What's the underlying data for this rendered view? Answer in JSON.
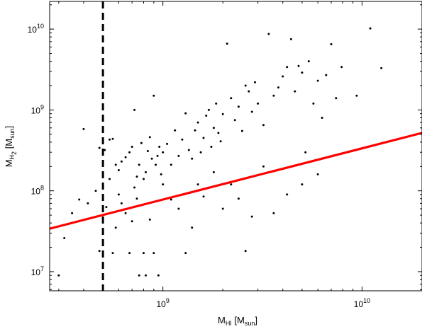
{
  "chart_data": {
    "type": "scatter",
    "xscale": "log",
    "yscale": "log",
    "xlim": [
      270000000,
      20000000000
    ],
    "ylim": [
      5800000,
      22000000000
    ],
    "grid": false,
    "xlabel": {
      "main": "M",
      "sub": "HI",
      "unit_open": " [M",
      "unit_sub": "sun",
      "unit_close": "]"
    },
    "ylabel": {
      "main": "M",
      "sub": "H",
      "subsub": "2",
      "unit_open": " [M",
      "unit_sub": "sun",
      "unit_close": "]"
    },
    "xticks": [
      {
        "value": 1000000000,
        "base": "10",
        "exp": "9"
      },
      {
        "value": 10000000000,
        "base": "10",
        "exp": "10"
      }
    ],
    "yticks": [
      {
        "value": 10000000,
        "base": "10",
        "exp": "7"
      },
      {
        "value": 100000000,
        "base": "10",
        "exp": "8"
      },
      {
        "value": 1000000000,
        "base": "10",
        "exp": "9"
      },
      {
        "value": 10000000000,
        "base": "10",
        "exp": "10"
      }
    ],
    "threshold_line": {
      "x": 500000000,
      "style": "dashed",
      "color": "#000000"
    },
    "fit_line": {
      "points": [
        [
          270000000,
          34000000
        ],
        [
          20000000000,
          520000000
        ]
      ],
      "color": "#ff0000"
    },
    "series": [
      {
        "marker_color": "#000000",
        "points": [
          [
            400000000,
            580000000
          ],
          [
            480000000,
            340000000
          ],
          [
            510000000,
            320000000
          ],
          [
            540000000,
            430000000
          ],
          [
            560000000,
            440000000
          ],
          [
            580000000,
            210000000
          ],
          [
            600000000,
            180000000
          ],
          [
            620000000,
            230000000
          ],
          [
            650000000,
            260000000
          ],
          [
            680000000,
            300000000
          ],
          [
            700000000,
            350000000
          ],
          [
            720000000,
            1000000000
          ],
          [
            740000000,
            150000000
          ],
          [
            760000000,
            210000000
          ],
          [
            780000000,
            390000000
          ],
          [
            800000000,
            140000000
          ],
          [
            820000000,
            170000000
          ],
          [
            840000000,
            310000000
          ],
          [
            860000000,
            460000000
          ],
          [
            880000000,
            250000000
          ],
          [
            900000000,
            1500000000
          ],
          [
            920000000,
            210000000
          ],
          [
            940000000,
            270000000
          ],
          [
            960000000,
            350000000
          ],
          [
            980000000,
            160000000
          ],
          [
            1000000000,
            300000000
          ],
          [
            1050000000,
            380000000
          ],
          [
            1100000000,
            210000000
          ],
          [
            1150000000,
            560000000
          ],
          [
            1200000000,
            270000000
          ],
          [
            1250000000,
            430000000
          ],
          [
            1300000000,
            910000000
          ],
          [
            1350000000,
            320000000
          ],
          [
            1400000000,
            250000000
          ],
          [
            1450000000,
            560000000
          ],
          [
            1500000000,
            700000000
          ],
          [
            1550000000,
            300000000
          ],
          [
            1600000000,
            450000000
          ],
          [
            1650000000,
            850000000
          ],
          [
            1700000000,
            1000000000
          ],
          [
            1750000000,
            350000000
          ],
          [
            1800000000,
            600000000
          ],
          [
            1850000000,
            1200000000
          ],
          [
            1900000000,
            520000000
          ],
          [
            1950000000,
            410000000
          ],
          [
            2000000000,
            890000000
          ],
          [
            2100000000,
            6600000000
          ],
          [
            2200000000,
            1400000000
          ],
          [
            2300000000,
            750000000
          ],
          [
            2400000000,
            1100000000
          ],
          [
            2500000000,
            550000000
          ],
          [
            2600000000,
            2000000000
          ],
          [
            2700000000,
            1700000000
          ],
          [
            2800000000,
            950000000
          ],
          [
            2900000000,
            2200000000
          ],
          [
            3000000000,
            1200000000
          ],
          [
            3200000000,
            650000000
          ],
          [
            3400000000,
            8700000000
          ],
          [
            3600000000,
            1500000000
          ],
          [
            3800000000,
            1900000000
          ],
          [
            4000000000,
            2600000000
          ],
          [
            4200000000,
            3400000000
          ],
          [
            4400000000,
            7500000000
          ],
          [
            4600000000,
            1700000000
          ],
          [
            4800000000,
            3500000000
          ],
          [
            5000000000,
            2900000000
          ],
          [
            5200000000,
            300000000
          ],
          [
            5400000000,
            4000000000
          ],
          [
            5700000000,
            1200000000
          ],
          [
            6000000000,
            2300000000
          ],
          [
            6300000000,
            800000000
          ],
          [
            6600000000,
            2700000000
          ],
          [
            7000000000,
            6500000000
          ],
          [
            7400000000,
            1400000000
          ],
          [
            7900000000,
            3400000000
          ],
          [
            9400000000,
            1500000000
          ],
          [
            11000000000,
            10200000000
          ],
          [
            12500000000,
            3300000000
          ],
          [
            300000000,
            9000000
          ],
          [
            320000000,
            26000000
          ],
          [
            350000000,
            53000000
          ],
          [
            380000000,
            78000000
          ],
          [
            420000000,
            70000000
          ],
          [
            460000000,
            100000000
          ],
          [
            480000000,
            18000000
          ],
          [
            500000000,
            45000000
          ],
          [
            520000000,
            63000000
          ],
          [
            540000000,
            140000000
          ],
          [
            560000000,
            17000000
          ],
          [
            580000000,
            35000000
          ],
          [
            600000000,
            90000000
          ],
          [
            620000000,
            70000000
          ],
          [
            650000000,
            53000000
          ],
          [
            680000000,
            17000000
          ],
          [
            700000000,
            42000000
          ],
          [
            720000000,
            110000000
          ],
          [
            740000000,
            80000000
          ],
          [
            760000000,
            9000000
          ],
          [
            800000000,
            17000000
          ],
          [
            820000000,
            9000000
          ],
          [
            860000000,
            44000000
          ],
          [
            900000000,
            17000000
          ],
          [
            950000000,
            9000000
          ],
          [
            1000000000,
            120000000
          ],
          [
            1100000000,
            78000000
          ],
          [
            1200000000,
            60000000
          ],
          [
            1300000000,
            17000000
          ],
          [
            1400000000,
            35000000
          ],
          [
            1500000000,
            120000000
          ],
          [
            1600000000,
            85000000
          ],
          [
            1800000000,
            170000000
          ],
          [
            2000000000,
            60000000
          ],
          [
            2200000000,
            120000000
          ],
          [
            2400000000,
            80000000
          ],
          [
            2600000000,
            18000000
          ],
          [
            2800000000,
            48000000
          ],
          [
            3200000000,
            200000000
          ],
          [
            3600000000,
            53000000
          ],
          [
            4200000000,
            90000000
          ],
          [
            5000000000,
            120000000
          ],
          [
            6000000000,
            160000000
          ]
        ]
      }
    ]
  }
}
